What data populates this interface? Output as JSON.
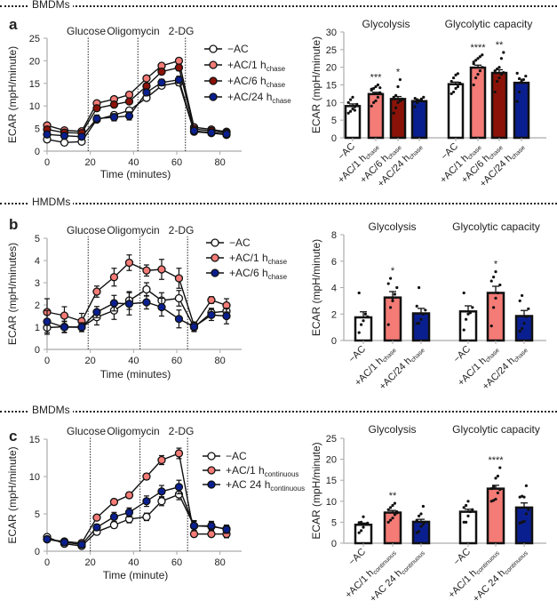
{
  "sections": [
    {
      "header": "BMDMs",
      "letter": "a"
    },
    {
      "header": "HMDMs",
      "letter": "b"
    },
    {
      "header": "BMDMs",
      "letter": "c"
    }
  ],
  "colors": {
    "minus_ac": "#ffffff",
    "ac_1h": "#f47b76",
    "ac_6h": "#8b1208",
    "ac_24h": "#0a1f8f"
  },
  "chart_data": [
    {
      "id": "a-line",
      "type": "line",
      "title": "",
      "xlabel": "Time (minutes)",
      "ylabel": "ECAR (mpH/minute)",
      "xlim": [
        0,
        90
      ],
      "ylim": [
        0,
        25
      ],
      "xticks": [
        0,
        20,
        40,
        60,
        80
      ],
      "yticks": [
        0,
        5,
        10,
        15,
        20,
        25
      ],
      "injections": [
        {
          "x": 19,
          "label": "Glucose"
        },
        {
          "x": 42,
          "label": "Oligomycin"
        },
        {
          "x": 64,
          "label": "2-DG"
        }
      ],
      "x": [
        0,
        8,
        16,
        23,
        31,
        38,
        46,
        53,
        61,
        68,
        76,
        83
      ],
      "series": [
        {
          "name": "−AC",
          "sub": "",
          "color": "#ffffff",
          "values": [
            2.6,
            1.9,
            2.1,
            7.0,
            8.0,
            9.0,
            11.8,
            14.5,
            15.2,
            4.3,
            4.0,
            3.6
          ],
          "err": [
            0.3,
            0.3,
            0.3,
            0.6,
            0.6,
            0.6,
            0.5,
            0.6,
            0.7,
            0.3,
            0.3,
            0.3
          ]
        },
        {
          "name": "+AC/1 h",
          "sub": "chase",
          "color": "#f47b76",
          "values": [
            5.7,
            4.6,
            4.4,
            10.6,
            11.5,
            12.5,
            16.1,
            18.9,
            20.0,
            5.3,
            4.8,
            4.3
          ],
          "err": [
            0.3,
            0.3,
            0.3,
            0.5,
            0.5,
            0.5,
            0.5,
            0.6,
            0.6,
            0.3,
            0.3,
            0.3
          ]
        },
        {
          "name": "+AC/6 h",
          "sub": "chase",
          "color": "#8b1208",
          "values": [
            4.8,
            4.1,
            4.0,
            9.5,
            10.3,
            11.0,
            14.4,
            17.6,
            18.5,
            4.9,
            4.5,
            4.1
          ],
          "err": [
            0.3,
            0.3,
            0.3,
            0.5,
            0.5,
            0.5,
            0.5,
            0.6,
            0.7,
            0.3,
            0.3,
            0.3
          ]
        },
        {
          "name": "+AC/24 h",
          "sub": "chase",
          "color": "#0a1f8f",
          "values": [
            3.7,
            3.4,
            3.2,
            7.2,
            7.5,
            7.8,
            13.0,
            15.2,
            15.8,
            4.5,
            4.1,
            3.8
          ],
          "err": [
            0.3,
            0.3,
            0.3,
            0.8,
            0.8,
            0.9,
            0.6,
            0.7,
            0.8,
            0.3,
            0.3,
            0.3
          ]
        }
      ],
      "legend": "top-right"
    },
    {
      "id": "a-bar",
      "type": "bar",
      "ylabel": "ECAR (mpH/minute)",
      "ylim": [
        0,
        30
      ],
      "yticks": [
        0,
        5,
        10,
        15,
        20,
        25,
        30
      ],
      "groups": [
        {
          "title": "Glycolysis",
          "bars": [
            {
              "name": "−AC",
              "sub": "",
              "color": "#ffffff",
              "value": 9.0,
              "err": 0.6,
              "sig": "",
              "points": [
                7.0,
                7.5,
                8.2,
                8.8,
                9.5,
                10.0,
                10.8,
                11.5,
                7.8
              ]
            },
            {
              "name": "+AC/1 h",
              "sub": "chase",
              "color": "#f47b76",
              "value": 12.4,
              "err": 0.5,
              "sig": "***",
              "points": [
                9.0,
                10.0,
                10.5,
                11.5,
                12.8,
                13.5,
                14.0,
                14.5,
                15.0,
                14.2,
                13.8
              ]
            },
            {
              "name": "+AC/6 h",
              "sub": "chase",
              "color": "#8b1208",
              "value": 11.0,
              "err": 0.7,
              "sig": "*",
              "points": [
                7.0,
                8.5,
                10.0,
                10.5,
                11.0,
                11.5,
                12.0,
                14.5,
                16.5,
                10.8
              ]
            },
            {
              "name": "+AC/24 h",
              "sub": "chase",
              "color": "#0a1f8f",
              "value": 10.4,
              "err": 0.4,
              "sig": "",
              "points": [
                8.8,
                10.0,
                10.5,
                11.0,
                11.5,
                11.2,
                10.8
              ]
            }
          ]
        },
        {
          "title": "Glycolytic capacity",
          "bars": [
            {
              "name": "−AC",
              "sub": "",
              "color": "#ffffff",
              "value": 15.2,
              "err": 0.6,
              "sig": "",
              "points": [
                12.5,
                13.0,
                14.0,
                14.5,
                15.5,
                16.0,
                17.0,
                17.8,
                18.2
              ]
            },
            {
              "name": "+AC/1 h",
              "sub": "chase",
              "color": "#f47b76",
              "value": 19.9,
              "err": 0.7,
              "sig": "****",
              "points": [
                15.0,
                17.0,
                18.0,
                19.0,
                20.0,
                21.0,
                22.0,
                22.5,
                23.0,
                23.5,
                21.5
              ]
            },
            {
              "name": "+AC/6 h",
              "sub": "chase",
              "color": "#8b1208",
              "value": 18.4,
              "err": 0.9,
              "sig": "**",
              "points": [
                13.0,
                16.0,
                17.0,
                18.0,
                18.5,
                19.0,
                19.5,
                20.0,
                22.5,
                24.2
              ]
            },
            {
              "name": "+AC/24 h",
              "sub": "chase",
              "color": "#0a1f8f",
              "value": 15.6,
              "err": 1.0,
              "sig": "",
              "points": [
                10.3,
                13.0,
                16.0,
                16.5,
                17.5,
                18.3,
                16.8
              ]
            }
          ]
        }
      ]
    },
    {
      "id": "b-line",
      "type": "line",
      "xlabel": "Time (minutes)",
      "ylabel": "ECAR (mpH/minutes)",
      "xlim": [
        0,
        90
      ],
      "ylim": [
        0,
        5
      ],
      "xticks": [
        0,
        20,
        40,
        60,
        80
      ],
      "yticks": [
        0,
        1,
        2,
        3,
        4,
        5
      ],
      "injections": [
        {
          "x": 19,
          "label": "Glucose"
        },
        {
          "x": 43,
          "label": "Oligomycin"
        },
        {
          "x": 65,
          "label": "2-DG"
        }
      ],
      "x": [
        0,
        8,
        16,
        23,
        31,
        38,
        46,
        53,
        61,
        68,
        76,
        83
      ],
      "series": [
        {
          "name": "−AC",
          "sub": "",
          "color": "#ffffff",
          "values": [
            0.98,
            1.02,
            1.0,
            1.45,
            1.75,
            2.2,
            2.7,
            2.2,
            2.3,
            1.0,
            1.65,
            1.72
          ],
          "err": [
            0.3,
            0.25,
            0.2,
            0.35,
            0.4,
            0.4,
            0.3,
            0.35,
            0.35,
            0.2,
            0.2,
            0.25
          ]
        },
        {
          "name": "+AC/1 h",
          "sub": "chase",
          "color": "#f47b76",
          "values": [
            1.68,
            1.52,
            1.27,
            2.6,
            3.25,
            3.9,
            3.55,
            3.6,
            3.2,
            1.08,
            2.22,
            1.98
          ],
          "err": [
            0.6,
            0.4,
            0.35,
            0.25,
            0.4,
            0.35,
            0.25,
            0.45,
            0.45,
            0.15,
            0.15,
            0.3
          ]
        },
        {
          "name": "+AC/6 h",
          "sub": "chase",
          "color": "#0a1f8f",
          "values": [
            1.25,
            1.0,
            1.0,
            1.68,
            2.08,
            2.05,
            2.12,
            1.9,
            1.37,
            1.02,
            1.55,
            1.5
          ],
          "err": [
            0.5,
            0.25,
            0.2,
            0.25,
            0.35,
            0.5,
            0.3,
            0.4,
            0.4,
            0.2,
            0.25,
            0.35
          ]
        }
      ],
      "legend": "top-right"
    },
    {
      "id": "b-bar",
      "type": "bar",
      "ylabel": "ECAR (mpH/minute)",
      "ylim": [
        0,
        8
      ],
      "yticks": [
        0,
        2,
        4,
        6,
        8
      ],
      "groups": [
        {
          "title": "Glycolysis",
          "bars": [
            {
              "name": "−AC",
              "sub": "",
              "color": "#ffffff",
              "value": 1.75,
              "err": 0.42,
              "sig": "",
              "points": [
                0.6,
                1.2,
                1.5,
                2.0,
                1.8,
                3.6
              ]
            },
            {
              "name": "+AC/1 h",
              "sub": "chase",
              "color": "#f47b76",
              "value": 3.25,
              "err": 0.45,
              "sig": "*",
              "points": [
                1.2,
                2.5,
                3.0,
                3.5,
                4.0,
                4.3,
                4.7,
                3.2
              ]
            },
            {
              "name": "+AC/24 h",
              "sub": "chase",
              "color": "#0a1f8f",
              "value": 2.05,
              "err": 0.38,
              "sig": "",
              "points": [
                1.3,
                1.3,
                1.6,
                2.0,
                2.3,
                2.6,
                4.0
              ]
            }
          ]
        },
        {
          "title": "Glycolytic capacity",
          "bars": [
            {
              "name": "−AC",
              "sub": "",
              "color": "#ffffff",
              "value": 2.2,
              "err": 0.42,
              "sig": "",
              "points": [
                0.8,
                1.6,
                2.0,
                2.1,
                2.5,
                3.6
              ]
            },
            {
              "name": "+AC/1 h",
              "sub": "chase",
              "color": "#f47b76",
              "value": 3.6,
              "err": 0.5,
              "sig": "*",
              "points": [
                1.1,
                2.5,
                3.2,
                3.6,
                4.2,
                4.5,
                4.8,
                5.2
              ]
            },
            {
              "name": "+AC/24 h",
              "sub": "chase",
              "color": "#0a1f8f",
              "value": 1.85,
              "err": 0.42,
              "sig": "",
              "points": [
                0.7,
                0.9,
                1.3,
                1.8,
                2.4,
                3.0,
                3.4
              ]
            }
          ]
        }
      ]
    },
    {
      "id": "c-line",
      "type": "line",
      "xlabel": "Time (minute)",
      "ylabel": "ECAR (mpH/minute)",
      "xlim": [
        0,
        90
      ],
      "ylim": [
        0,
        15
      ],
      "xticks": [
        0,
        20,
        40,
        60,
        80
      ],
      "yticks": [
        0,
        5,
        10,
        15
      ],
      "injections": [
        {
          "x": 20,
          "label": "Glucose"
        },
        {
          "x": 43,
          "label": "Oligomycin"
        },
        {
          "x": 65,
          "label": "2-DG"
        }
      ],
      "x": [
        0,
        8,
        16,
        23,
        31,
        38,
        46,
        53,
        61,
        68,
        76,
        83
      ],
      "series": [
        {
          "name": "−AC",
          "sub": "",
          "color": "#ffffff",
          "values": [
            1.9,
            1.0,
            0.7,
            2.6,
            3.5,
            4.3,
            4.6,
            6.7,
            7.6,
            3.4,
            3.3,
            3.0
          ],
          "err": [
            0.3,
            0.3,
            0.2,
            0.3,
            0.4,
            0.5,
            0.5,
            0.6,
            0.7,
            0.7,
            0.6,
            0.5
          ]
        },
        {
          "name": "+AC/1 h",
          "sub": "continuous",
          "color": "#f47b76",
          "values": [
            1.6,
            1.3,
            1.1,
            4.5,
            6.6,
            7.5,
            10.0,
            12.2,
            13.1,
            2.3,
            2.3,
            2.3
          ],
          "err": [
            0.3,
            0.2,
            0.2,
            0.3,
            0.3,
            0.4,
            0.4,
            0.6,
            0.7,
            0.3,
            0.3,
            0.5
          ]
        },
        {
          "name": "+AC 24 h",
          "sub": "continuous",
          "color": "#0a1f8f",
          "values": [
            1.6,
            1.2,
            0.9,
            3.2,
            4.6,
            5.2,
            6.7,
            8.0,
            8.6,
            3.4,
            3.4,
            2.9
          ],
          "err": [
            0.3,
            0.2,
            0.2,
            0.4,
            0.6,
            0.6,
            0.7,
            0.8,
            0.9,
            0.6,
            0.6,
            0.5
          ]
        }
      ],
      "legend": "top-right"
    },
    {
      "id": "c-bar",
      "type": "bar",
      "ylabel": "ECAR (mpH/minute)",
      "ylim": [
        0,
        25
      ],
      "yticks": [
        0,
        5,
        10,
        15,
        20,
        25
      ],
      "groups": [
        {
          "title": "Glycolysis",
          "bars": [
            {
              "name": "−AC",
              "sub": "",
              "color": "#ffffff",
              "value": 4.4,
              "err": 0.4,
              "sig": "",
              "points": [
                2.5,
                3.0,
                3.8,
                4.5,
                4.8,
                4.9,
                5.0,
                6.3
              ]
            },
            {
              "name": "+AC/1 h",
              "sub": "continuous",
              "color": "#f47b76",
              "value": 7.3,
              "err": 0.5,
              "sig": "**",
              "points": [
                5.0,
                5.5,
                6.0,
                6.8,
                7.5,
                8.0,
                8.5,
                9.0,
                9.5,
                7.2
              ]
            },
            {
              "name": "+AC 24 h",
              "sub": "continuous",
              "color": "#0a1f8f",
              "value": 5.1,
              "err": 0.6,
              "sig": "",
              "points": [
                2.5,
                2.8,
                4.0,
                4.5,
                5.0,
                5.5,
                6.5,
                7.0,
                8.8
              ]
            }
          ]
        },
        {
          "title": "Glycolytic capacity",
          "bars": [
            {
              "name": "−AC",
              "sub": "",
              "color": "#ffffff",
              "value": 7.5,
              "err": 0.6,
              "sig": "",
              "points": [
                5.0,
                5.0,
                6.5,
                7.5,
                8.0,
                8.5,
                9.0,
                10.0
              ]
            },
            {
              "name": "+AC/1 h",
              "sub": "continuous",
              "color": "#f47b76",
              "value": 13.0,
              "err": 0.8,
              "sig": "****",
              "points": [
                10.0,
                10.2,
                10.5,
                12.0,
                12.8,
                13.0,
                13.5,
                15.5,
                16.0,
                18.0
              ]
            },
            {
              "name": "+AC 24 h",
              "sub": "continuous",
              "color": "#0a1f8f",
              "value": 8.5,
              "err": 1.1,
              "sig": "",
              "points": [
                4.8,
                5.0,
                5.2,
                7.0,
                8.0,
                11.0,
                11.2,
                11.0,
                13.7
              ]
            }
          ]
        }
      ]
    }
  ]
}
